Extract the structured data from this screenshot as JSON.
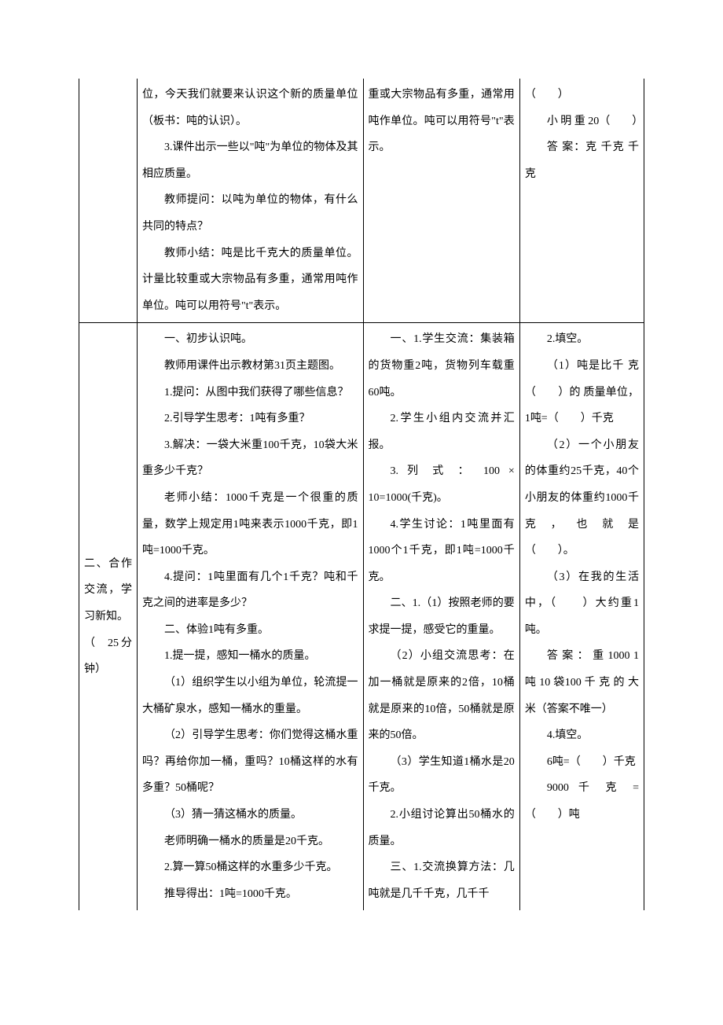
{
  "row1": {
    "col1": "",
    "col2": {
      "p1": "位，今天我们就要来认识这个新的质量单位（板书：吨的认识）。",
      "p2": "3.课件出示一些以\"吨\"为单位的物体及其相应质量。",
      "p3": "教师提问：以吨为单位的物体，有什么共同的特点？",
      "p4": "教师小结：吨是比千克大的质量单位。计量比较重或大宗物品有多重，通常用吨作单位。吨可以用符号\"t\"表示。"
    },
    "col3": {
      "p1": "重或大宗物品有多重，通常用吨作单位。吨可以用符号\"t\"表示。"
    },
    "col4": {
      "p1": "（　　）",
      "p2": "小 明 重 20（　　）",
      "p3": "答 案：克  千克  千克"
    }
  },
  "row2": {
    "col1": "二、合作交流，学习新知。\n（  25分钟）",
    "col2": {
      "p1": "一、初步认识吨。",
      "p2": "教师用课件出示教材第31页主题图。",
      "p3": "1.提问：从图中我们获得了哪些信息？",
      "p4": "2.引导学生思考：1吨有多重？",
      "p5": "3.解决：一袋大米重100千克，10袋大米重多少千克？",
      "p6": "老师小结：1000千克是一个很重的质量，数学上规定用1吨来表示1000千克，即1吨=1000千克。",
      "p7": "4.提问：1吨里面有几个1千克？吨和千克之间的进率是多少？",
      "p8": "二、体验1吨有多重。",
      "p9": "1.提一提，感知一桶水的质量。",
      "p10": "（1）组织学生以小组为单位，轮流提一大桶矿泉水，感知一桶水的重量。",
      "p11": "（2）引导学生思考：你们觉得这桶水重吗？再给你加一桶，重吗？10桶这样的水有多重？50桶呢？",
      "p12": "（3）猜一猜这桶水的质量。",
      "p13": "老师明确一桶水的质量是20千克。",
      "p14": "2.算一算50桶这样的水重多少千克。",
      "p15": "推导得出：1吨=1000千克。"
    },
    "col3": {
      "p1": "一、1.学生交流：集装箱的货物重2吨，货物列车载重60吨。",
      "p2": "2.学生小组内交流并汇报。",
      "p3": "3. 列 式 ： 100 × 10=1000(千克)。",
      "p4": "4.学生讨论：1吨里面有1000个1千克，即1吨=1000千克。",
      "p5": "二、1.（1）按照老师的要求提一提，感受它的重量。",
      "p6": "（2）小组交流思考：在加一桶就是原来的2倍，10桶就是原来的10倍，50桶就是原来的50倍。",
      "p7": "（3）学生知道1桶水是20千克。",
      "p8": "2.小组讨论算出50桶水的质量。",
      "p9": "三、1.交流换算方法：几吨就是几千千克，几千千"
    },
    "col4": {
      "p1": "2.填空。",
      "p2": "（1）吨是比千 克（　　）的 质量单位，1吨=（　　）千克",
      "p3": "（2）一个小朋友的体重约25千克，40个小朋友的体重约1000千 克 ， 也 就 是（　　）。",
      "p4": "（3）在我的生活中，（　　）大约重1吨。",
      "p5": "答 案 ： 重  1000   1 吨   10 袋100 千 克 的 大 米（答案不唯一）",
      "p6": "4.填空。",
      "p7": "6吨=（　　）千克",
      "p8": "9000  千 克 =（　　）吨"
    }
  }
}
